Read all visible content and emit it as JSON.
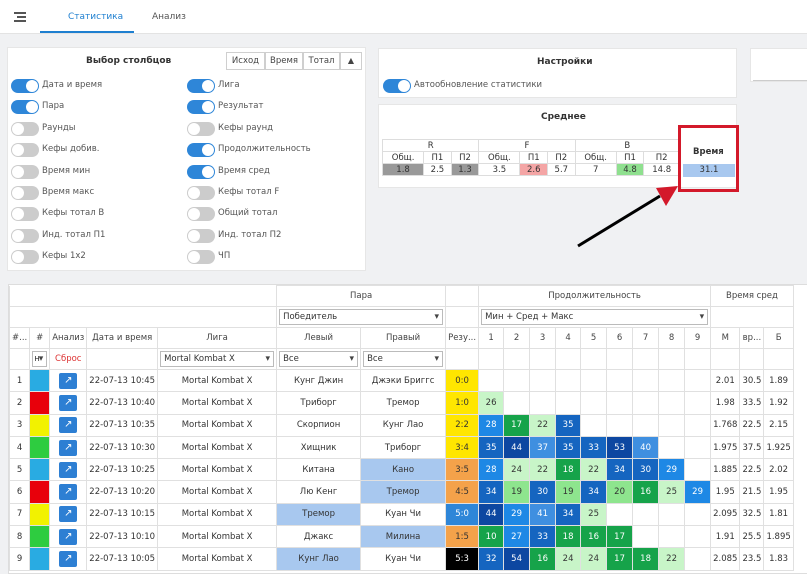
{
  "tabs": [
    "Статистика",
    "Анализ"
  ],
  "columns_panel": {
    "title": "Выбор столбцов",
    "segments": [
      "Исход",
      "Время",
      "Тотал"
    ],
    "toggles": [
      {
        "label": "Дата и время",
        "on": true
      },
      {
        "label": "Лига",
        "on": true
      },
      {
        "label": "Пара",
        "on": true
      },
      {
        "label": "Результат",
        "on": true
      },
      {
        "label": "Раунды",
        "on": false
      },
      {
        "label": "Кефы раунд",
        "on": false
      },
      {
        "label": "Кефы добив.",
        "on": false
      },
      {
        "label": "Продолжительность",
        "on": true
      },
      {
        "label": "Время мин",
        "on": false
      },
      {
        "label": "Время сред",
        "on": true
      },
      {
        "label": "Время макс",
        "on": false
      },
      {
        "label": "Кефы тотал F",
        "on": false
      },
      {
        "label": "Кефы тотал B",
        "on": false
      },
      {
        "label": "Общий тотал",
        "on": false
      },
      {
        "label": "Инд. тотал П1",
        "on": false
      },
      {
        "label": "Инд. тотал П2",
        "on": false
      },
      {
        "label": "Кефы 1х2",
        "on": false
      },
      {
        "label": "ЧП",
        "on": false
      }
    ]
  },
  "settings": {
    "title": "Настройки",
    "auto": "Автообновление статистики"
  },
  "average": {
    "title": "Среднее",
    "groups": [
      "R",
      "F",
      "B"
    ],
    "sub": [
      "Общ.",
      "П1",
      "П2"
    ],
    "values": [
      "1.8",
      "2.5",
      "1.3",
      "3.5",
      "2.6",
      "5.7",
      "7",
      "4.8",
      "14.8"
    ],
    "time_label": "Время",
    "time_value": "31.1"
  },
  "table": {
    "group_headers": {
      "pair": "Пара",
      "duration": "Продолжительность",
      "avg_time": "Время сред"
    },
    "pair_select": "Победитель",
    "duration_select": "Мин + Сред + Макс",
    "headers": [
      "#...",
      "#",
      "Анализ",
      "Дата и время",
      "Лига",
      "Левый",
      "Правый",
      "Резу...",
      "1",
      "2",
      "3",
      "4",
      "5",
      "6",
      "7",
      "8",
      "9",
      "M",
      "вр...",
      "Б"
    ],
    "filters": {
      "marker": "н",
      "reset": "Сброс",
      "league": "Mortal Kombat X",
      "left": "Все",
      "right": "Все"
    },
    "rows": [
      {
        "n": "1",
        "date": "22-07-13 10:45",
        "league": "Mortal Kombat X",
        "left": "Кунг Джин",
        "right": "Джэки Бриггс",
        "res": "0:0",
        "d": [],
        "m": "2.01",
        "t": "30.5",
        "b": "1.89"
      },
      {
        "n": "2",
        "date": "22-07-13 10:40",
        "league": "Mortal Kombat X",
        "left": "Триборг",
        "right": "Тремор",
        "res": "1:0",
        "d": [
          "26"
        ],
        "m": "1.98",
        "t": "33.5",
        "b": "1.92"
      },
      {
        "n": "3",
        "date": "22-07-13 10:35",
        "league": "Mortal Kombat X",
        "left": "Скорпион",
        "right": "Кунг Лао",
        "res": "2:2",
        "d": [
          "28",
          "17",
          "22",
          "35"
        ],
        "m": "1.768",
        "t": "22.5",
        "b": "2.15"
      },
      {
        "n": "4",
        "date": "22-07-13 10:30",
        "league": "Mortal Kombat X",
        "left": "Хищник",
        "right": "Триборг",
        "res": "3:4",
        "d": [
          "35",
          "44",
          "37",
          "35",
          "33",
          "53",
          "40"
        ],
        "m": "1.975",
        "t": "37.5",
        "b": "1.925"
      },
      {
        "n": "5",
        "date": "22-07-13 10:25",
        "league": "Mortal Kombat X",
        "left": "Китана",
        "right": "Кано",
        "res": "3:5",
        "d": [
          "28",
          "24",
          "22",
          "18",
          "22",
          "34",
          "30",
          "29"
        ],
        "m": "1.885",
        "t": "22.5",
        "b": "2.02"
      },
      {
        "n": "6",
        "date": "22-07-13 10:20",
        "league": "Mortal Kombat X",
        "left": "Лю Кенг",
        "right": "Тремор",
        "res": "4:5",
        "d": [
          "34",
          "19",
          "30",
          "19",
          "34",
          "20",
          "16",
          "25",
          "29"
        ],
        "m": "1.95",
        "t": "21.5",
        "b": "1.95"
      },
      {
        "n": "7",
        "date": "22-07-13 10:15",
        "league": "Mortal Kombat X",
        "left": "Тремор",
        "right": "Куан Чи",
        "res": "5:0",
        "d": [
          "44",
          "29",
          "41",
          "34",
          "25"
        ],
        "m": "2.095",
        "t": "32.5",
        "b": "1.81"
      },
      {
        "n": "8",
        "date": "22-07-13 10:10",
        "league": "Mortal Kombat X",
        "left": "Джакс",
        "right": "Милина",
        "res": "1:5",
        "d": [
          "10",
          "27",
          "33",
          "18",
          "16",
          "17"
        ],
        "m": "1.91",
        "t": "25.5",
        "b": "1.895"
      },
      {
        "n": "9",
        "date": "22-07-13 10:05",
        "league": "Mortal Kombat X",
        "left": "Кунг Лао",
        "right": "Куан Чи",
        "res": "5:3",
        "d": [
          "32",
          "54",
          "16",
          "24",
          "24",
          "17",
          "18",
          "22"
        ],
        "m": "2.085",
        "t": "23.5",
        "b": "1.83"
      }
    ]
  }
}
